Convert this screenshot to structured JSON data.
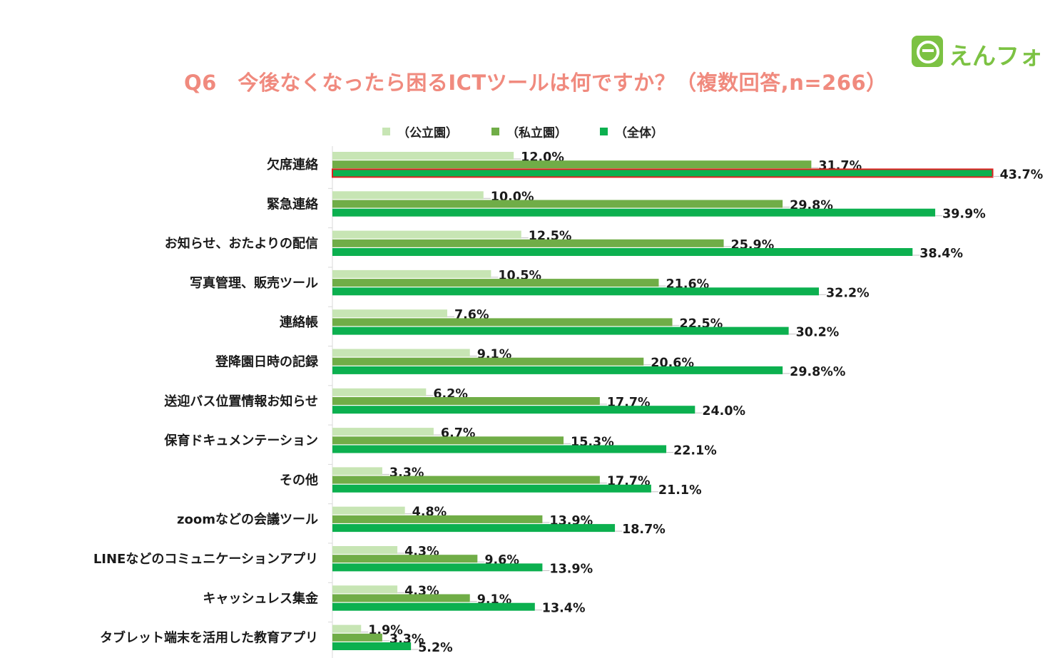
{
  "title": "Q6　今後なくなったら困るICTツールは何ですか？（複数回答,n=266）",
  "logo": {
    "text": "えんフォト",
    "icon": "e-logo-icon",
    "color": "#7cc243"
  },
  "chart_data": {
    "type": "bar",
    "orientation": "horizontal",
    "title": "Q6　今後なくなったら困るICTツールは何ですか？（複数回答,n=266）",
    "categories": [
      "欠席連絡",
      "緊急連絡",
      "お知らせ、おたよりの配信",
      "写真管理、販売ツール",
      "連絡帳",
      "登降園日時の記録",
      "送迎バス位置情報お知らせ",
      "保育ドキュメンテーション",
      "その他",
      "zoomなどの会議ツール",
      "LINEなどのコミュニケーションアプリ",
      "キャッシュレス集金",
      "タブレット端末を活用した教育アプリ"
    ],
    "series": [
      {
        "name": "（公立園）",
        "color": "#c7e5b4",
        "values": [
          12.0,
          10.0,
          12.5,
          10.5,
          7.6,
          9.1,
          6.2,
          6.7,
          3.3,
          4.8,
          4.3,
          4.3,
          1.9
        ],
        "labels": [
          "12.0%",
          "10.0%",
          "12.5%",
          "10.5%",
          "7.6%",
          "9.1%",
          "6.2%",
          "6.7%",
          "3.3%",
          "4.8%",
          "4.3%",
          "4.3%",
          "1.9%"
        ]
      },
      {
        "name": "（私立園）",
        "color": "#70ad47",
        "values": [
          31.7,
          29.8,
          25.9,
          21.6,
          22.5,
          20.6,
          17.7,
          15.3,
          17.7,
          13.9,
          9.6,
          9.1,
          3.3
        ],
        "labels": [
          "31.7%",
          "29.8%",
          "25.9%",
          "21.6%",
          "22.5%",
          "20.6%",
          "17.7%",
          "15.3%",
          "17.7%",
          "13.9%",
          "9.6%",
          "9.1%",
          "3.3%"
        ]
      },
      {
        "name": "（全体）",
        "color": "#0cb04f",
        "values": [
          43.7,
          39.9,
          38.4,
          32.2,
          30.2,
          29.8,
          24.0,
          22.1,
          21.1,
          18.7,
          13.9,
          13.4,
          5.2
        ],
        "labels": [
          "43.7%",
          "39.9%",
          "38.4%",
          "32.2%",
          "30.2%",
          "29.8%%",
          "24.0%",
          "22.1%",
          "21.1%",
          "18.7%",
          "13.9%",
          "13.4%",
          "5.2%"
        ]
      }
    ],
    "highlight": {
      "category": "欠席連絡",
      "series": "（全体）",
      "color": "#e02020"
    },
    "legend_position": "top",
    "grid": false
  }
}
